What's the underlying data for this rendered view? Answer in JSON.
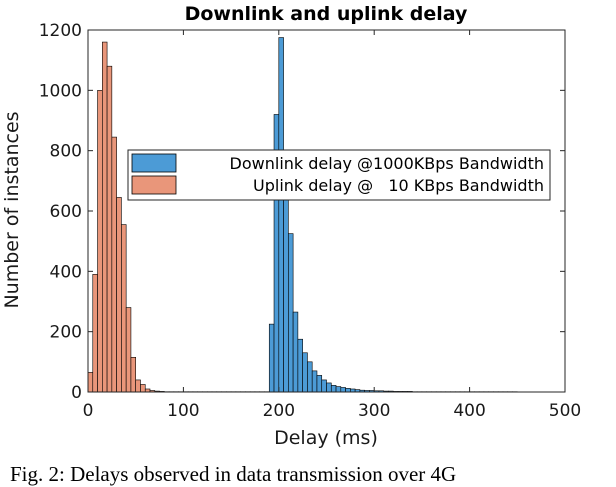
{
  "chart_data": {
    "type": "bar",
    "title": "Downlink and uplink delay",
    "xlabel": "Delay (ms)",
    "ylabel": "Number of instances",
    "xlim": [
      0,
      500
    ],
    "ylim": [
      0,
      1200
    ],
    "xticks": [
      "0",
      "100",
      "200",
      "300",
      "400",
      "500"
    ],
    "yticks": [
      "0",
      "200",
      "400",
      "600",
      "800",
      "1000",
      "1200"
    ],
    "bin_width": 5,
    "grid": false,
    "legend_position": "center",
    "series": [
      {
        "name": "Downlink delay @1000KBps Bandwidth",
        "color": "#4c9bd6",
        "bins": [
          [
            190,
            225
          ],
          [
            195,
            920
          ],
          [
            200,
            1175
          ],
          [
            205,
            700
          ],
          [
            210,
            525
          ],
          [
            215,
            265
          ],
          [
            220,
            175
          ],
          [
            225,
            130
          ],
          [
            230,
            100
          ],
          [
            235,
            70
          ],
          [
            240,
            55
          ],
          [
            245,
            40
          ],
          [
            250,
            30
          ],
          [
            255,
            22
          ],
          [
            260,
            18
          ],
          [
            265,
            15
          ],
          [
            270,
            12
          ],
          [
            275,
            10
          ],
          [
            280,
            8
          ],
          [
            285,
            6
          ],
          [
            290,
            5
          ],
          [
            295,
            5
          ],
          [
            300,
            4
          ],
          [
            305,
            4
          ],
          [
            310,
            3
          ],
          [
            315,
            3
          ],
          [
            320,
            2
          ],
          [
            325,
            2
          ],
          [
            330,
            2
          ],
          [
            335,
            2
          ],
          [
            340,
            1
          ],
          [
            345,
            1
          ],
          [
            350,
            1
          ],
          [
            355,
            1
          ],
          [
            360,
            1
          ],
          [
            365,
            1
          ],
          [
            370,
            1
          ],
          [
            375,
            1
          ],
          [
            380,
            1
          ],
          [
            385,
            1
          ],
          [
            390,
            1
          ],
          [
            395,
            1
          ],
          [
            400,
            1
          ],
          [
            405,
            1
          ],
          [
            410,
            1
          ],
          [
            415,
            1
          ],
          [
            420,
            1
          ],
          [
            425,
            1
          ],
          [
            430,
            1
          ],
          [
            435,
            1
          ],
          [
            440,
            1
          ],
          [
            445,
            1
          ]
        ]
      },
      {
        "name": "Uplink delay @   10 KBps Bandwidth",
        "color": "#e9967a",
        "bins": [
          [
            0,
            65
          ],
          [
            5,
            390
          ],
          [
            10,
            1000
          ],
          [
            15,
            1160
          ],
          [
            20,
            1080
          ],
          [
            25,
            845
          ],
          [
            30,
            645
          ],
          [
            35,
            555
          ],
          [
            40,
            280
          ],
          [
            45,
            115
          ],
          [
            50,
            40
          ],
          [
            55,
            25
          ],
          [
            60,
            10
          ],
          [
            65,
            5
          ],
          [
            70,
            3
          ],
          [
            75,
            2
          ],
          [
            80,
            1
          ],
          [
            85,
            1
          ],
          [
            90,
            1
          ],
          [
            95,
            1
          ],
          [
            100,
            1
          ],
          [
            105,
            1
          ],
          [
            110,
            1
          ],
          [
            115,
            1
          ],
          [
            120,
            1
          ],
          [
            125,
            1
          ],
          [
            130,
            1
          ],
          [
            135,
            1
          ],
          [
            140,
            1
          ],
          [
            145,
            1
          ],
          [
            150,
            1
          ],
          [
            155,
            1
          ],
          [
            160,
            1
          ],
          [
            165,
            1
          ],
          [
            170,
            1
          ],
          [
            175,
            1
          ],
          [
            180,
            1
          ],
          [
            185,
            1
          ]
        ]
      }
    ]
  },
  "caption": "Fig. 2: Delays observed in data transmission over 4G"
}
